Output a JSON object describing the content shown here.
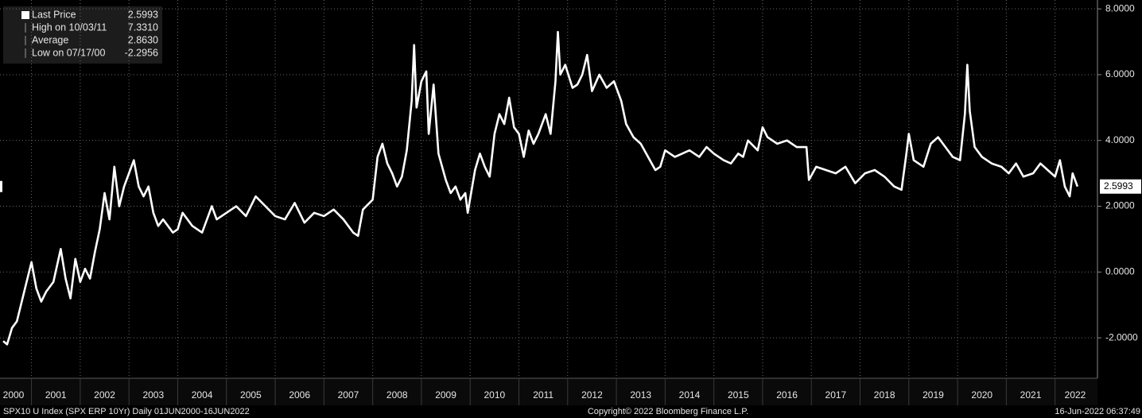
{
  "chart_data": {
    "type": "line",
    "x": [
      2000.42,
      2000.5,
      2000.6,
      2000.7,
      2000.8,
      2000.9,
      2001.0,
      2001.1,
      2001.2,
      2001.3,
      2001.45,
      2001.6,
      2001.7,
      2001.8,
      2001.9,
      2002.0,
      2002.1,
      2002.2,
      2002.3,
      2002.4,
      2002.5,
      2002.6,
      2002.7,
      2002.8,
      2002.9,
      2003.0,
      2003.1,
      2003.2,
      2003.3,
      2003.4,
      2003.5,
      2003.6,
      2003.7,
      2003.9,
      2004.0,
      2004.1,
      2004.3,
      2004.5,
      2004.7,
      2004.8,
      2005.0,
      2005.2,
      2005.4,
      2005.6,
      2005.8,
      2006.0,
      2006.2,
      2006.4,
      2006.6,
      2006.8,
      2007.0,
      2007.2,
      2007.4,
      2007.6,
      2007.7,
      2007.8,
      2008.0,
      2008.1,
      2008.2,
      2008.3,
      2008.4,
      2008.5,
      2008.6,
      2008.7,
      2008.8,
      2008.85,
      2008.9,
      2009.0,
      2009.1,
      2009.15,
      2009.25,
      2009.35,
      2009.5,
      2009.6,
      2009.7,
      2009.8,
      2009.9,
      2009.95,
      2010.1,
      2010.2,
      2010.3,
      2010.4,
      2010.5,
      2010.6,
      2010.7,
      2010.8,
      2010.9,
      2011.0,
      2011.1,
      2011.2,
      2011.3,
      2011.4,
      2011.55,
      2011.65,
      2011.75,
      2011.8,
      2011.85,
      2011.95,
      2012.1,
      2012.2,
      2012.3,
      2012.4,
      2012.5,
      2012.65,
      2012.8,
      2012.95,
      2013.1,
      2013.2,
      2013.35,
      2013.5,
      2013.65,
      2013.8,
      2013.9,
      2014.0,
      2014.2,
      2014.35,
      2014.5,
      2014.7,
      2014.85,
      2015.0,
      2015.2,
      2015.35,
      2015.5,
      2015.6,
      2015.7,
      2015.9,
      2016.0,
      2016.1,
      2016.3,
      2016.5,
      2016.7,
      2016.9,
      2016.95,
      2017.1,
      2017.3,
      2017.5,
      2017.7,
      2017.9,
      2018.1,
      2018.3,
      2018.5,
      2018.7,
      2018.85,
      2018.95,
      2019.0,
      2019.1,
      2019.3,
      2019.45,
      2019.6,
      2019.75,
      2019.9,
      2020.05,
      2020.15,
      2020.2,
      2020.25,
      2020.35,
      2020.5,
      2020.7,
      2020.9,
      2021.05,
      2021.2,
      2021.35,
      2021.55,
      2021.7,
      2021.85,
      2022.0,
      2022.1,
      2022.2,
      2022.3,
      2022.36,
      2022.46
    ],
    "series": [
      {
        "name": "Last Price",
        "color": "#ffffff",
        "values": [
          -2.1,
          -2.2,
          -1.7,
          -1.5,
          -0.9,
          -0.3,
          0.3,
          -0.5,
          -0.9,
          -0.6,
          -0.3,
          0.7,
          -0.2,
          -0.8,
          0.4,
          -0.3,
          0.1,
          -0.2,
          0.6,
          1.3,
          2.4,
          1.6,
          3.2,
          2.0,
          2.6,
          3.0,
          3.4,
          2.6,
          2.3,
          2.6,
          1.8,
          1.4,
          1.6,
          1.2,
          1.3,
          1.8,
          1.4,
          1.2,
          2.0,
          1.6,
          1.8,
          2.0,
          1.7,
          2.3,
          2.0,
          1.7,
          1.6,
          2.1,
          1.5,
          1.8,
          1.7,
          1.9,
          1.6,
          1.2,
          1.1,
          1.9,
          2.2,
          3.5,
          3.9,
          3.3,
          3.0,
          2.6,
          2.9,
          3.7,
          5.2,
          6.9,
          5.0,
          5.8,
          6.1,
          4.2,
          5.7,
          3.6,
          2.8,
          2.4,
          2.6,
          2.2,
          2.4,
          1.8,
          3.1,
          3.6,
          3.2,
          2.9,
          4.2,
          4.8,
          4.5,
          5.3,
          4.4,
          4.2,
          3.5,
          4.3,
          3.9,
          4.2,
          4.8,
          4.2,
          5.8,
          7.3,
          6.0,
          6.3,
          5.6,
          5.7,
          6.0,
          6.6,
          5.5,
          6.0,
          5.6,
          5.8,
          5.2,
          4.5,
          4.1,
          3.9,
          3.5,
          3.1,
          3.2,
          3.7,
          3.5,
          3.6,
          3.7,
          3.5,
          3.8,
          3.6,
          3.4,
          3.3,
          3.6,
          3.5,
          4.0,
          3.7,
          4.4,
          4.1,
          3.9,
          4.0,
          3.8,
          3.8,
          2.8,
          3.2,
          3.1,
          3.0,
          3.2,
          2.7,
          3.0,
          3.1,
          2.9,
          2.6,
          2.5,
          3.6,
          4.2,
          3.4,
          3.2,
          3.9,
          4.1,
          3.8,
          3.5,
          3.4,
          4.8,
          6.3,
          4.9,
          3.8,
          3.5,
          3.3,
          3.2,
          3.0,
          3.3,
          2.9,
          3.0,
          3.3,
          3.1,
          2.9,
          3.4,
          2.6,
          2.3,
          3.0,
          2.5993
        ]
      }
    ],
    "xlim": [
      2000.354,
      2022.87
    ],
    "xticks": [
      2000,
      2001,
      2002,
      2003,
      2004,
      2005,
      2006,
      2007,
      2008,
      2009,
      2010,
      2011,
      2012,
      2013,
      2014,
      2015,
      2016,
      2017,
      2018,
      2019,
      2020,
      2021,
      2022
    ],
    "ylim": [
      -3.23,
      8.27
    ],
    "yticks": [
      {
        "value": -2,
        "label": "-2.0000"
      },
      {
        "value": 0,
        "label": "0.0000"
      },
      {
        "value": 2,
        "label": "2.0000"
      },
      {
        "value": 4,
        "label": "4.0000"
      },
      {
        "value": 6,
        "label": "6.0000"
      },
      {
        "value": 8,
        "label": "8.0000"
      }
    ],
    "grid": true,
    "stats": [
      {
        "label": "Last Price",
        "value": "2.5993"
      },
      {
        "label": "High on 10/03/11",
        "value": "7.3310"
      },
      {
        "label": "Average",
        "value": "2.8630"
      },
      {
        "label": "Low on 07/17/00",
        "value": "-2.2956"
      }
    ],
    "footer": {
      "left": "SPX10 U Index (SPX ERP 10Yr)  Daily 01JUN2000-16JUN2022",
      "center": "Copyright© 2022 Bloomberg Finance L.P.",
      "right": "16-Jun-2022 06:37:49"
    }
  }
}
